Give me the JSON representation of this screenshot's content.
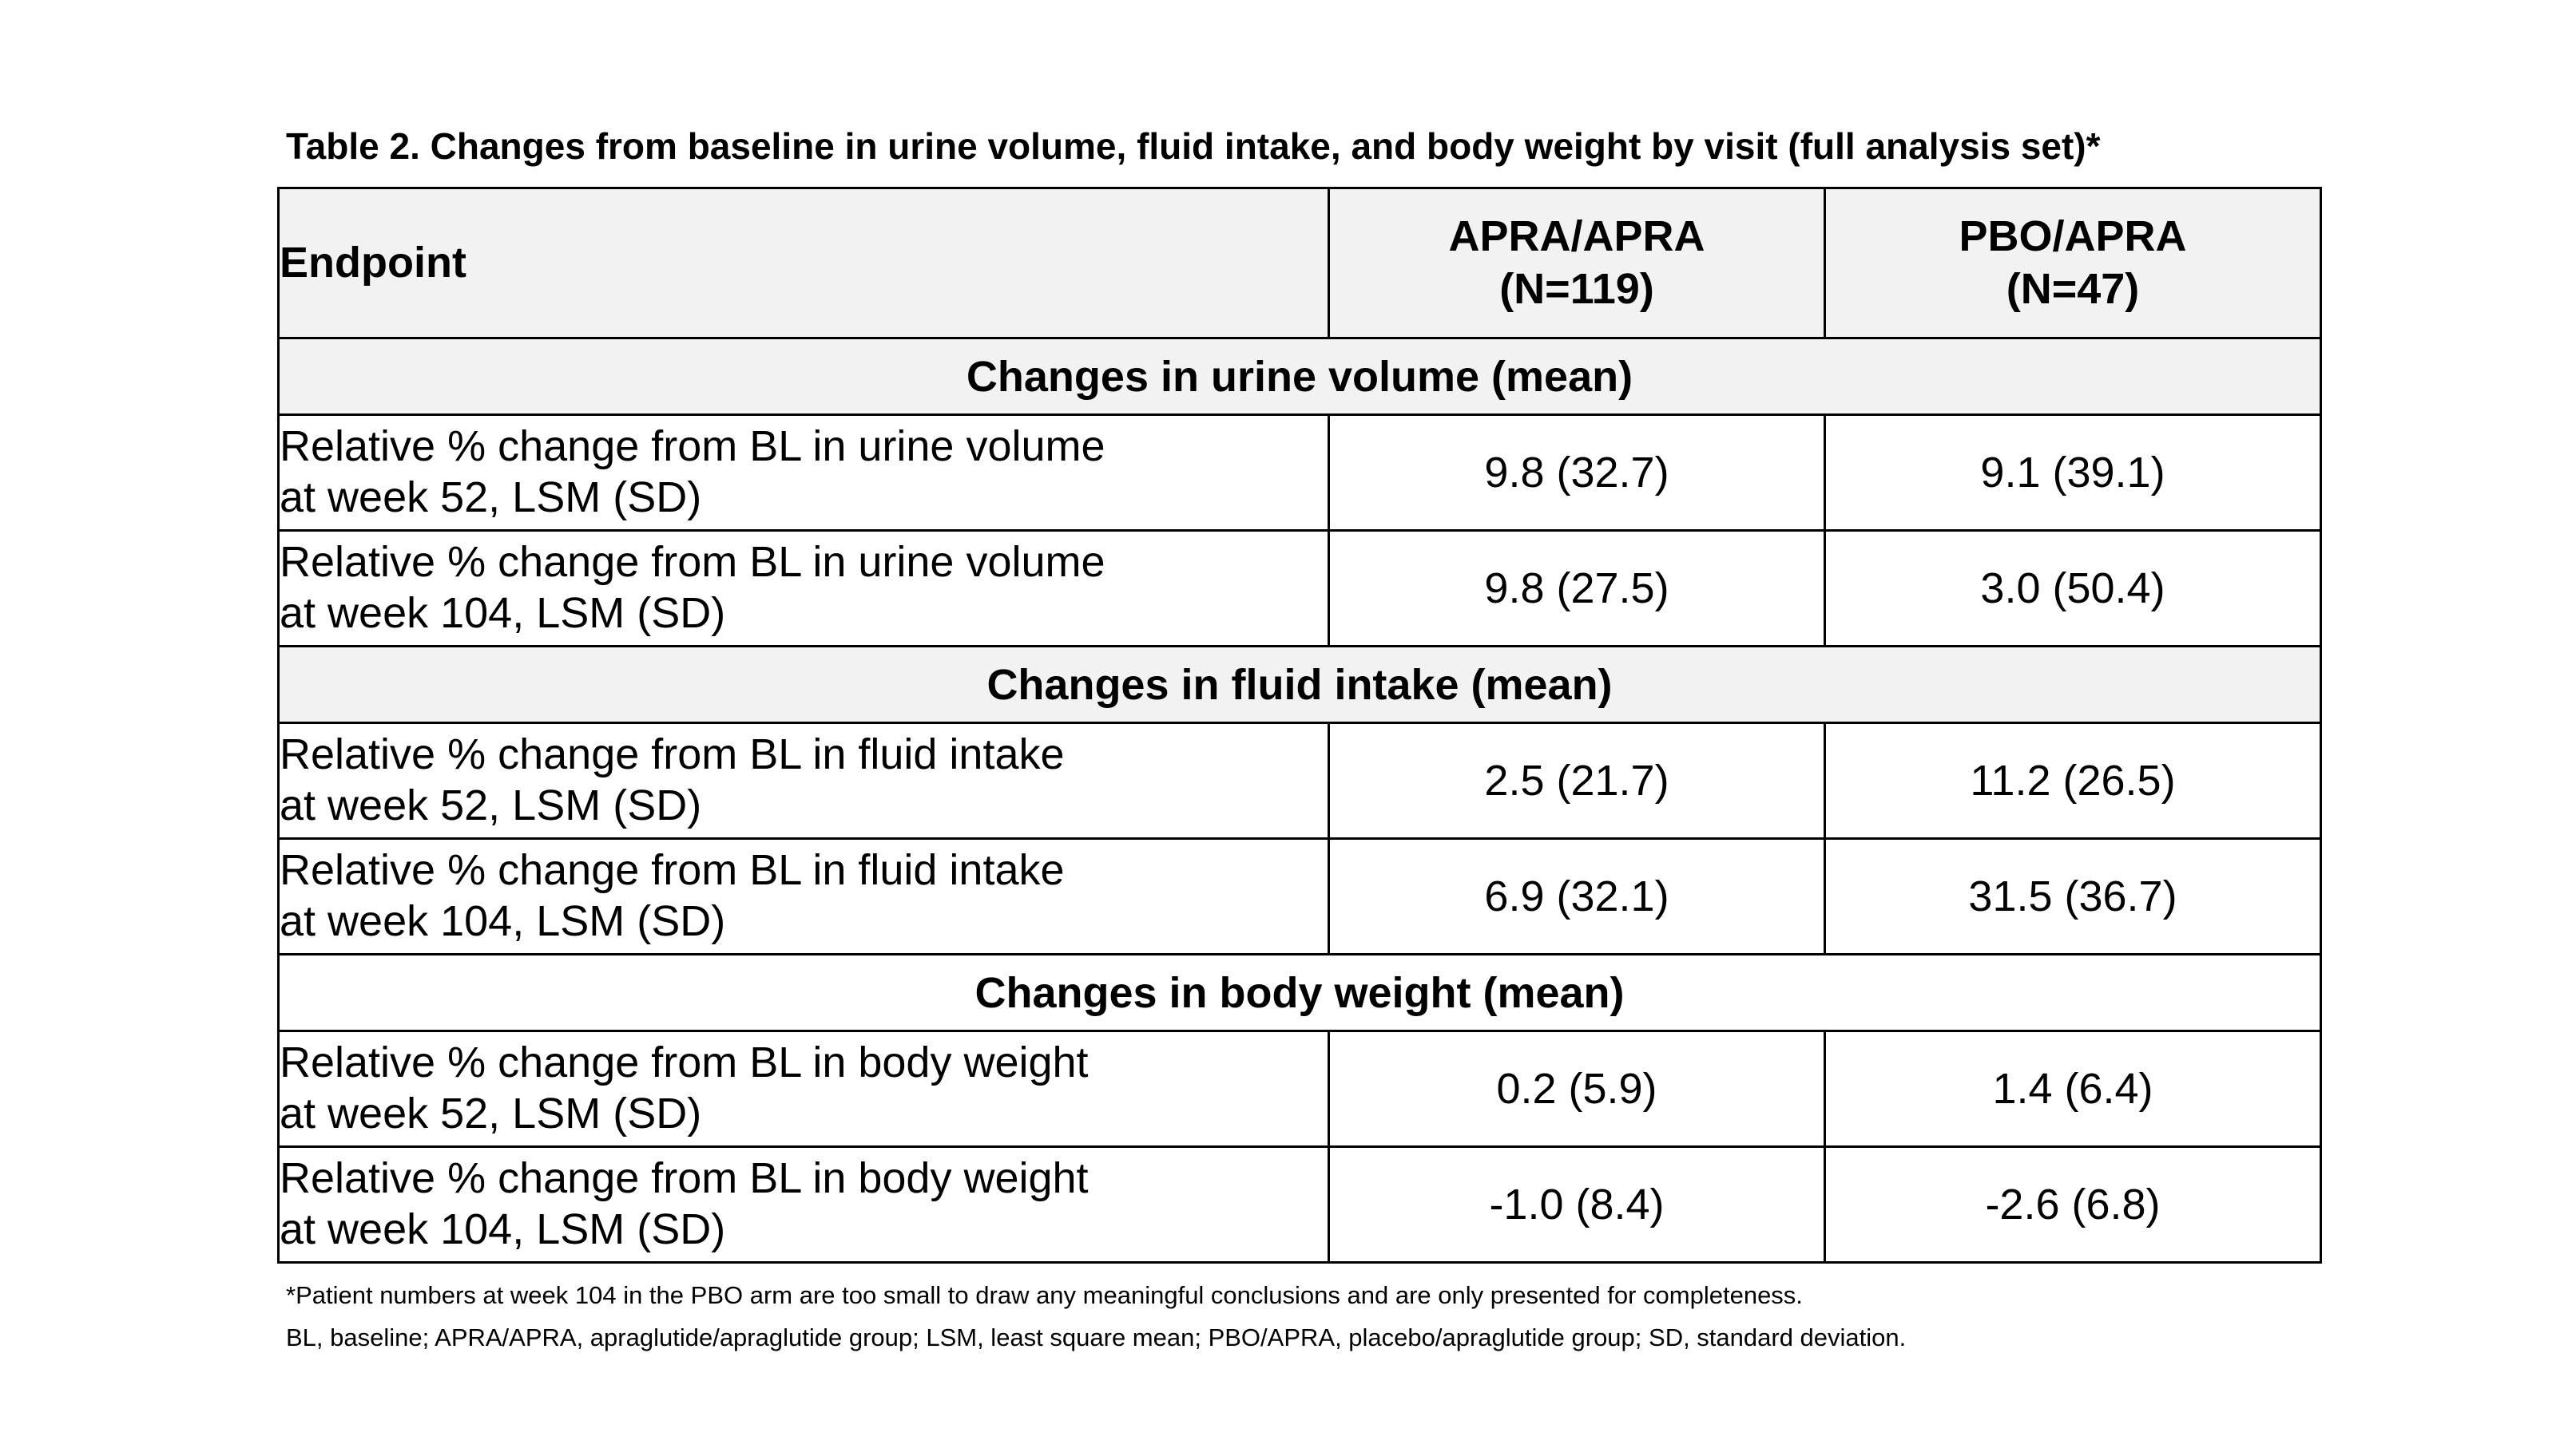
{
  "caption": "Table 2. Changes from baseline in urine volume, fluid intake, and body weight by visit (full analysis set)*",
  "header": {
    "endpoint": "Endpoint",
    "group1_name": "APRA/APRA",
    "group1_n": "(N=119)",
    "group2_name": "PBO/APRA",
    "group2_n": "(N=47)"
  },
  "sections": [
    {
      "title": "Changes in urine volume (mean)",
      "rows": [
        {
          "line1": "Relative % change from BL in urine volume",
          "line2": "at week 52, LSM (SD)",
          "apra": "9.8 (32.7)",
          "pbo": "9.1 (39.1)"
        },
        {
          "line1": "Relative % change from BL in urine volume",
          "line2": "at week 104, LSM (SD)",
          "apra": "9.8 (27.5)",
          "pbo": "3.0 (50.4)"
        }
      ]
    },
    {
      "title": "Changes in fluid intake (mean)",
      "rows": [
        {
          "line1": "Relative % change from BL in fluid intake",
          "line2": "at week 52, LSM (SD)",
          "apra": "2.5 (21.7)",
          "pbo": "11.2 (26.5)"
        },
        {
          "line1": "Relative % change from BL in fluid intake",
          "line2": "at week 104, LSM (SD)",
          "apra": "6.9 (32.1)",
          "pbo": "31.5 (36.7)"
        }
      ]
    },
    {
      "title": "Changes in body weight (mean)",
      "rows": [
        {
          "line1": "Relative % change from BL in body weight",
          "line2": "at week 52, LSM (SD)",
          "apra": "0.2 (5.9)",
          "pbo": "1.4 (6.4)"
        },
        {
          "line1": "Relative % change from BL in body weight",
          "line2": "at week 104, LSM (SD)",
          "apra": "-1.0 (8.4)",
          "pbo": "-2.6 (6.8)"
        }
      ]
    }
  ],
  "footnotes": {
    "note1": "*Patient numbers at week 104 in the PBO arm are too small to draw any meaningful conclusions and are only presented for completeness.",
    "note2": "BL, baseline; APRA/APRA, apraglutide/apraglutide group; LSM, least square mean; PBO/APRA, placebo/apraglutide group; SD, standard deviation."
  },
  "colors": {
    "header_bg": "#f2f2f2",
    "border": "#000000",
    "text": "#000000"
  }
}
